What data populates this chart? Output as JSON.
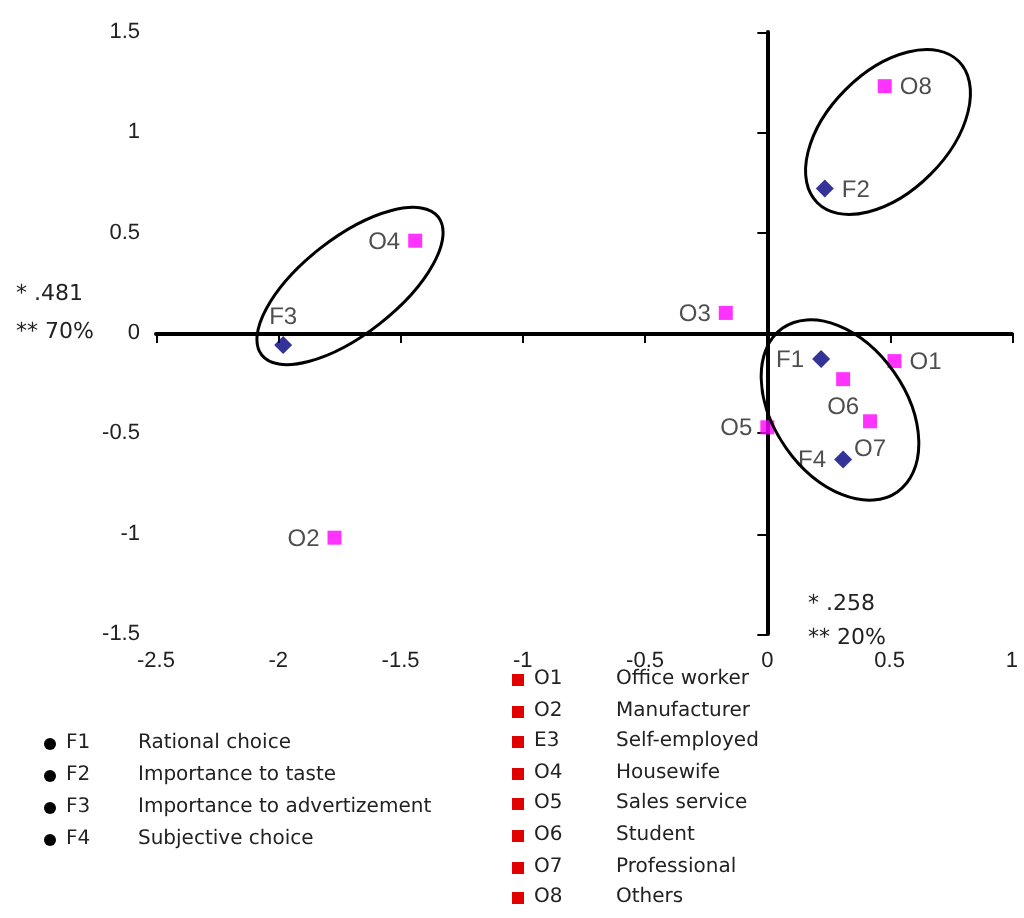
{
  "chart_data": {
    "type": "scatter",
    "series": [
      {
        "color": "#000080",
        "marker": "diamond",
        "x": [
          0.22,
          0.235,
          -1.98,
          0.31
        ],
        "values": [
          -0.13,
          0.72,
          -0.06,
          -0.63
        ],
        "value_labels": [
          "F1",
          "F2",
          "F3",
          "F4"
        ]
      },
      {
        "color": "#ff00ff",
        "marker": "square",
        "x": [
          0.52,
          -1.77,
          -0.17,
          -1.44,
          0.0,
          0.31,
          0.42,
          0.48
        ],
        "values": [
          -0.14,
          -1.02,
          0.1,
          0.46,
          -0.47,
          -0.23,
          -0.44,
          1.23
        ],
        "value_labels": [
          "O1",
          "O2",
          "O3",
          "O4",
          "O5",
          "O6",
          "O7",
          "O8"
        ]
      }
    ],
    "xlim": [
      -2.5,
      1
    ],
    "xticks": [
      -2.5,
      -2,
      -1.5,
      -1,
      -0.5,
      0,
      0.5,
      1
    ],
    "ylim": [
      -1.5,
      1.5
    ],
    "yticks": [
      -1.5,
      -1,
      -0.5,
      0,
      0.5,
      1,
      1.5
    ],
    "annotations": [
      "* .481",
      "** 70%",
      "* .258",
      "** 20%",
      "F1 Rational choice",
      "F2 Importance to taste",
      "F3 Importance to advertizement",
      "F4 Subjective choice",
      "O1 Office worker",
      "O2 Manufacturer",
      "E3 Self-employed",
      "O4 Housewife",
      "O5 Sales service",
      "O6 Student",
      "O7 Professional",
      "O8 Others"
    ]
  }
}
